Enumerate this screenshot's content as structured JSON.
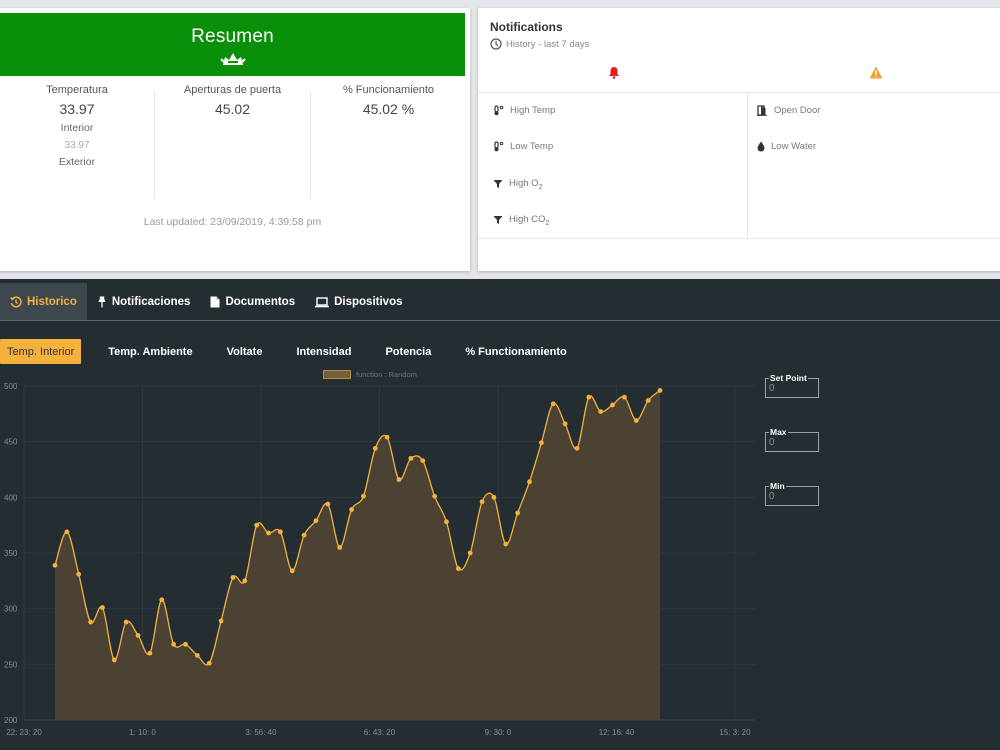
{
  "resumen": {
    "title": "Resumen",
    "stats": [
      {
        "label": "Temperatura",
        "value": "33.97",
        "sub1": "Interior",
        "sub2": "33.97",
        "sub3": "Exterior"
      },
      {
        "label": "Aperturas de puerta",
        "value": "45.02"
      },
      {
        "label": "% Funcionamiento",
        "value": "45.02 %"
      }
    ],
    "last_updated": "Last updated: 23/09/2019, 4:39:58 pm"
  },
  "notifications": {
    "title": "Notifications",
    "subtitle": "History - last 7 days",
    "left_items": [
      {
        "label": "High Temp",
        "icon": "thermometer-icon"
      },
      {
        "label": "Low Temp",
        "icon": "thermometer-icon"
      },
      {
        "label": "High O",
        "sub": "2",
        "icon": "filter-icon"
      },
      {
        "label": "High CO",
        "sub": "2",
        "icon": "filter-icon"
      }
    ],
    "right_items": [
      {
        "label": "Open Door",
        "icon": "door-icon"
      },
      {
        "label": "Low Water",
        "icon": "water-drop-icon"
      }
    ],
    "colors": {
      "bell": "#e02020",
      "warning": "#f0a030"
    }
  },
  "tabs": {
    "main": [
      {
        "label": "Historico",
        "icon": "history-icon"
      },
      {
        "label": "Notificaciones",
        "icon": "pin-icon"
      },
      {
        "label": "Documentos",
        "icon": "document-icon"
      },
      {
        "label": "Dispositivos",
        "icon": "laptop-icon"
      }
    ],
    "sub": [
      "Temp. Interior",
      "Temp. Ambiente",
      "Voltate",
      "Intensidad",
      "Potencia",
      "% Functionamiento"
    ]
  },
  "fields": {
    "set_point": {
      "label": "Set Point",
      "placeholder": "0"
    },
    "max": {
      "label": "Max",
      "placeholder": "0"
    },
    "min": {
      "label": "Min",
      "placeholder": "0"
    }
  },
  "chart_data": {
    "type": "area",
    "legend": "function : Random",
    "ylim": [
      200,
      500
    ],
    "y_ticks": [
      200,
      250,
      300,
      350,
      400,
      450,
      500
    ],
    "x_tick_labels": [
      "22: 23: 20",
      "1: 10: 0",
      "3: 56: 40",
      "6: 43: 20",
      "9: 30: 0",
      "12: 16: 40",
      "15: 3: 20"
    ],
    "series": [
      {
        "values": [
          339,
          369,
          331,
          288,
          301,
          254,
          288,
          276,
          260,
          308,
          268,
          268,
          258,
          251,
          289,
          328,
          325,
          375,
          368,
          369,
          334,
          366,
          379,
          394,
          355,
          389,
          401,
          444,
          454,
          416,
          435,
          433,
          401,
          378,
          336,
          350,
          396,
          400,
          358,
          386,
          414,
          449,
          484,
          466,
          444,
          490,
          477,
          483,
          490,
          469,
          487,
          496
        ]
      }
    ],
    "colors": {
      "line": "#f4b13b",
      "fill": "#4b4234",
      "grid": "#2f383d",
      "axis_text": "#8a9094"
    }
  }
}
